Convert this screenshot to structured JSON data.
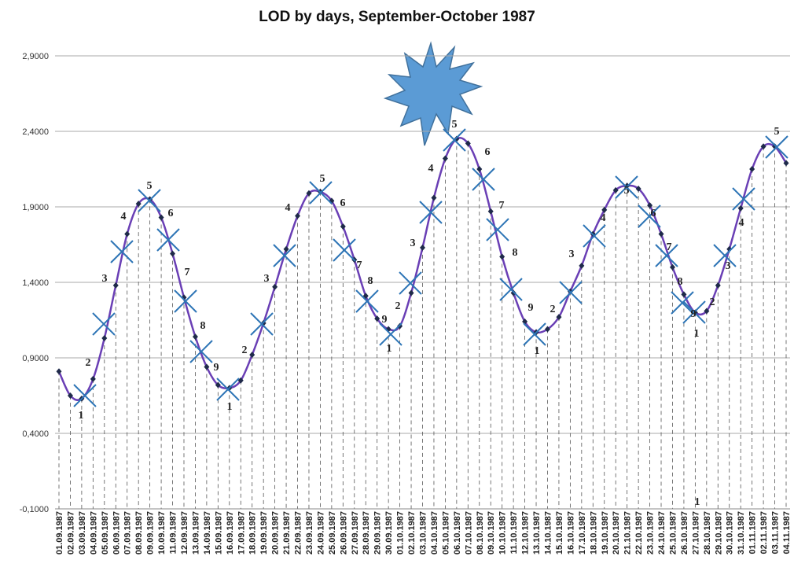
{
  "chart_data": {
    "type": "line",
    "title": "LOD by days, September-October 1987",
    "categories": [
      "01.09.1987",
      "02.09.1987",
      "03.09.1987",
      "04.09.1987",
      "05.09.1987",
      "06.09.1987",
      "07.09.1987",
      "08.09.1987",
      "09.09.1987",
      "10.09.1987",
      "11.09.1987",
      "12.09.1987",
      "13.09.1987",
      "14.09.1987",
      "15.09.1987",
      "16.09.1987",
      "17.09.1987",
      "18.09.1987",
      "19.09.1987",
      "20.09.1987",
      "21.09.1987",
      "22.09.1987",
      "23.09.1987",
      "24.09.1987",
      "25.09.1987",
      "26.09.1987",
      "27.09.1987",
      "28.09.1987",
      "29.09.1987",
      "30.09.1987",
      "01.10.1987",
      "02.10.1987",
      "03.10.1987",
      "04.10.1987",
      "05.10.1987",
      "06.10.1987",
      "07.10.1987",
      "08.10.1987",
      "09.10.1987",
      "10.10.1987",
      "11.10.1987",
      "12.10.1987",
      "13.10.1987",
      "14.10.1987",
      "15.10.1987",
      "16.10.1987",
      "17.10.1987",
      "18.10.1987",
      "19.10.1987",
      "20.10.1987",
      "21.10.1987",
      "22.10.1987",
      "23.10.1987",
      "24.10.1987",
      "25.10.1987",
      "26.10.1987",
      "27.10.1987",
      "28.10.1987",
      "29.10.1987",
      "30.10.1987",
      "31.10.1987",
      "01.11.1987",
      "02.11.1987",
      "03.11.1987",
      "04.11.1987"
    ],
    "values": [
      0.81,
      0.65,
      0.63,
      0.76,
      1.03,
      1.38,
      1.72,
      1.92,
      1.95,
      1.83,
      1.59,
      1.3,
      1.04,
      0.84,
      0.72,
      0.7,
      0.75,
      0.92,
      1.13,
      1.37,
      1.62,
      1.84,
      1.99,
      2.0,
      1.94,
      1.77,
      1.55,
      1.31,
      1.16,
      1.09,
      1.11,
      1.33,
      1.63,
      1.96,
      2.22,
      2.35,
      2.32,
      2.15,
      1.87,
      1.57,
      1.33,
      1.14,
      1.07,
      1.09,
      1.17,
      1.34,
      1.51,
      1.72,
      1.88,
      2.01,
      2.04,
      2.02,
      1.91,
      1.72,
      1.5,
      1.32,
      1.2,
      1.21,
      1.38,
      1.62,
      1.89,
      2.15,
      2.3,
      2.3,
      2.19
    ],
    "color": "#6a3fb5",
    "marker_color": "#1f2a4a",
    "ylim": [
      -0.1,
      2.9
    ],
    "yticks": [
      {
        "value": -0.1,
        "label": "-0,1000"
      },
      {
        "value": 0.4,
        "label": "0,4000"
      },
      {
        "value": 0.9,
        "label": "0,9000"
      },
      {
        "value": 1.4,
        "label": "1,4000"
      },
      {
        "value": 1.9,
        "label": "1,9000"
      },
      {
        "value": 2.4,
        "label": "2,4000"
      },
      {
        "value": 2.9,
        "label": "2,9000"
      }
    ],
    "grid": true,
    "annotations": [
      "2",
      "1",
      "3",
      "4",
      "5",
      "6",
      "7",
      "8",
      "9",
      "1",
      "2",
      "3",
      "4",
      "5",
      "6",
      "7",
      "8",
      "9",
      "1",
      "2",
      "3",
      "4",
      "5",
      "6",
      "7",
      "8",
      "9",
      "1",
      "2",
      "3",
      "4",
      "5",
      "6",
      "7",
      "8",
      "9",
      "1",
      "1",
      "2",
      "3",
      "4",
      "5"
    ]
  }
}
